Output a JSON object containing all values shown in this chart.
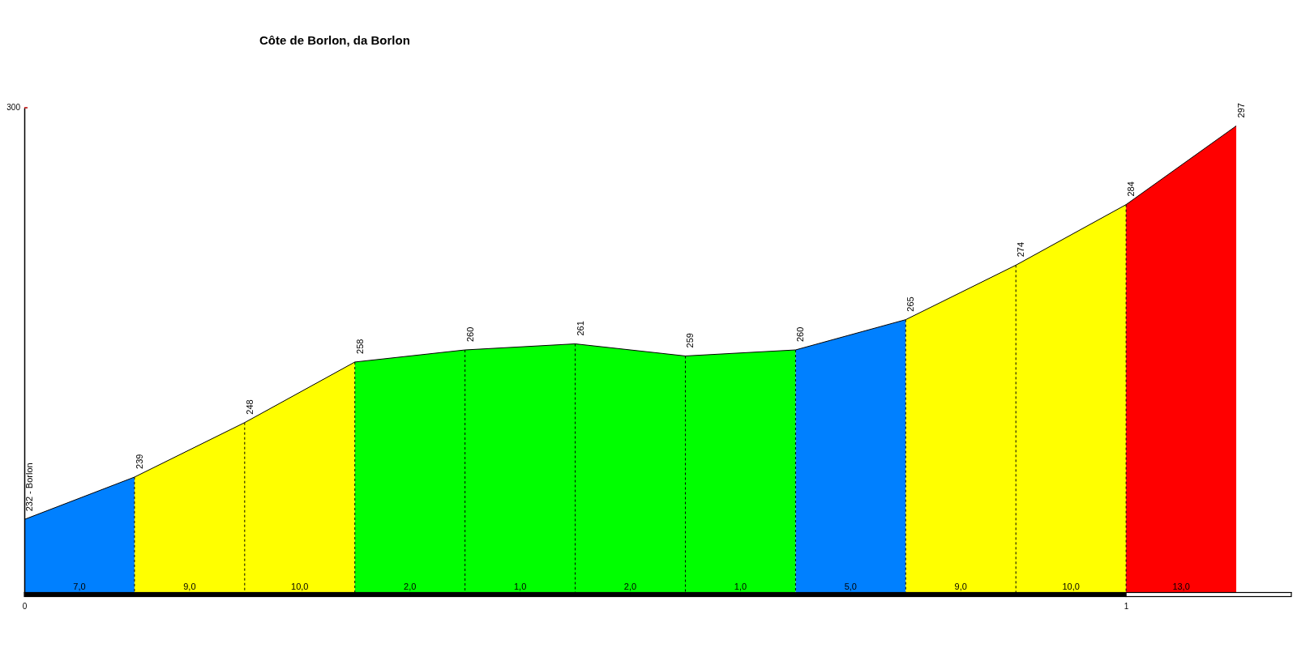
{
  "chart_data": {
    "type": "area",
    "title": "Côte de Borlon, da Borlon",
    "x": [
      0,
      0.1,
      0.2,
      0.3,
      0.4,
      0.5,
      0.6,
      0.7,
      0.8,
      0.9,
      1,
      1.1
    ],
    "xlim": [
      0,
      1.15
    ],
    "xticks": [
      0,
      1
    ],
    "ylim": [
      220,
      300
    ],
    "series": [
      {
        "color": "#0080ff",
        "values": [
          232,
          239,
          null,
          null,
          null,
          null,
          null,
          260,
          265,
          null,
          null,
          null
        ]
      },
      {
        "color": "#ffff00",
        "values": [
          null,
          239,
          248,
          258,
          null,
          null,
          null,
          null,
          265,
          274,
          284,
          null
        ]
      },
      {
        "color": "#00ff00",
        "values": [
          null,
          null,
          null,
          258,
          260,
          261,
          259,
          260,
          null,
          null,
          null,
          null
        ]
      },
      {
        "color": "#ff0000",
        "values": [
          null,
          null,
          null,
          null,
          null,
          null,
          null,
          null,
          null,
          null,
          284,
          297
        ]
      },
      {
        "type": "line",
        "color": "#000000",
        "values": [
          232,
          239,
          248,
          258,
          260,
          261,
          259,
          260,
          265,
          274,
          284,
          297
        ],
        "value_labels": [
          "232 - Borlon",
          "239",
          "248",
          "258",
          "260",
          "261",
          "259",
          "260",
          "265",
          "274",
          "284",
          "297"
        ]
      }
    ],
    "annotations": [
      "300",
      {
        "text": "7,0",
        "x": 0.05,
        "y": 220
      },
      {
        "text": "9,0",
        "x": 0.15,
        "y": 220
      },
      {
        "text": "10,0",
        "x": 0.25,
        "y": 220
      },
      {
        "text": "2,0",
        "x": 0.35,
        "y": 220
      },
      {
        "text": "1,0",
        "x": 0.45,
        "y": 220
      },
      {
        "text": "2,0",
        "x": 0.55,
        "y": 220
      },
      {
        "text": "1,0",
        "x": 0.65,
        "y": 220
      },
      {
        "text": "5,0",
        "x": 0.75,
        "y": 220
      },
      {
        "text": "9,0",
        "x": 0.85,
        "y": 220
      },
      {
        "text": "10,0",
        "x": 0.95,
        "y": 220
      },
      {
        "text": "13,0",
        "x": 1.05,
        "y": 220
      }
    ]
  }
}
